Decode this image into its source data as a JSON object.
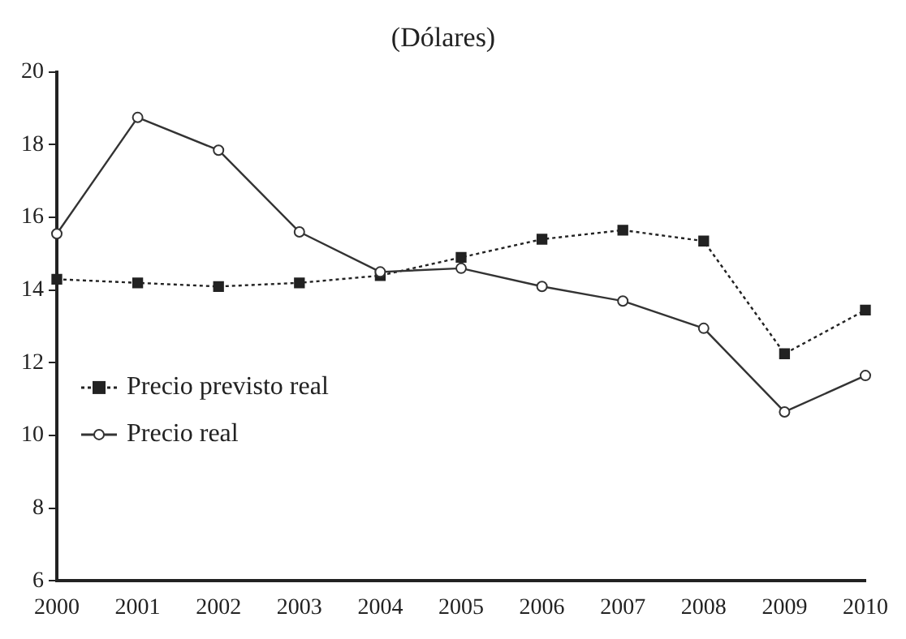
{
  "chart_data": {
    "type": "line",
    "title": "(Dólares)",
    "categories": [
      "2000",
      "2001",
      "2002",
      "2003",
      "2004",
      "2005",
      "2006",
      "2007",
      "2008",
      "2009",
      "2010"
    ],
    "series": [
      {
        "name": "Precio previsto real",
        "color": "#222222",
        "marker": "square",
        "line_style": "dotted",
        "values": [
          14.3,
          14.2,
          14.1,
          14.2,
          14.4,
          14.9,
          15.4,
          15.65,
          15.35,
          12.25,
          13.45
        ]
      },
      {
        "name": "Precio real",
        "color": "#333333",
        "marker": "circle",
        "line_style": "solid",
        "values": [
          15.55,
          18.75,
          17.85,
          15.6,
          14.5,
          14.6,
          14.1,
          13.7,
          12.95,
          10.65,
          11.65
        ]
      }
    ],
    "ylim": [
      6,
      20
    ],
    "yticks": [
      6,
      8,
      10,
      12,
      14,
      16,
      18,
      20
    ],
    "grid": false,
    "legend": "left"
  }
}
